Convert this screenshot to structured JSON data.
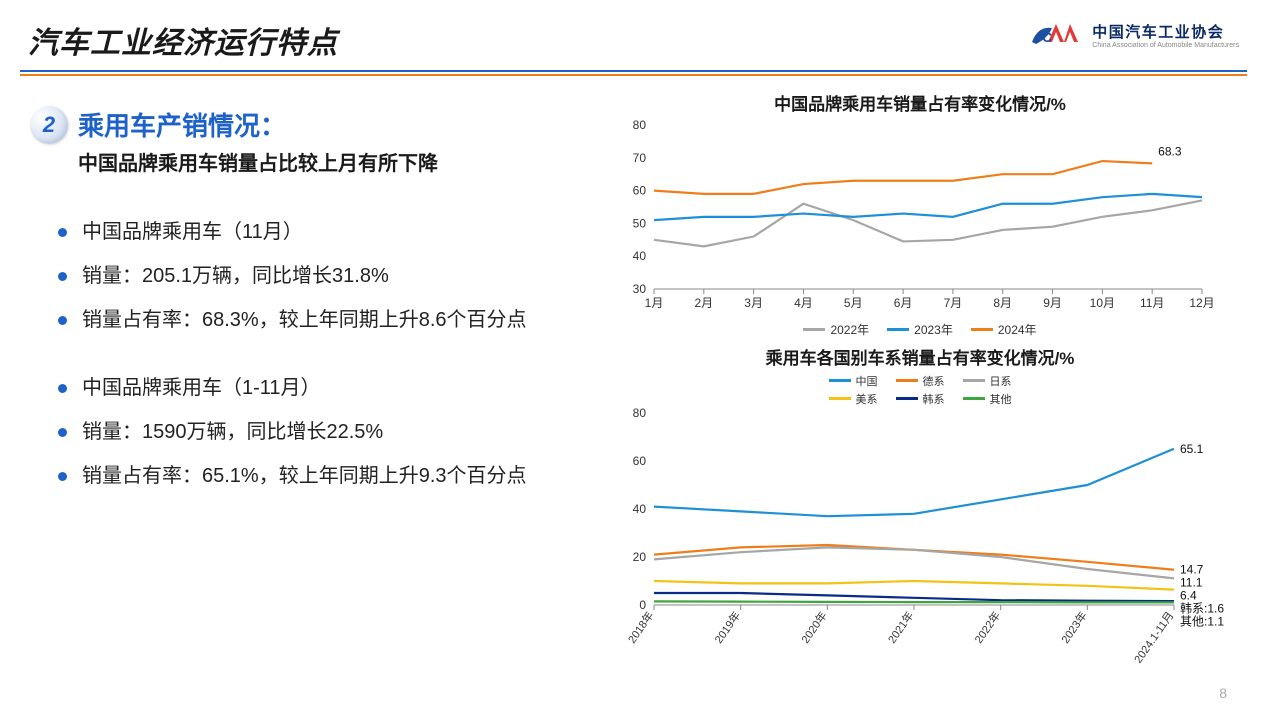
{
  "header": {
    "title": "汽车工业经济运行特点",
    "org_cn": "中国汽车工业协会",
    "org_en": "China Association of Automobile Manufacturers"
  },
  "section": {
    "num": "2",
    "title": "乘用车产销情况：",
    "subtitle": "中国品牌乘用车销量占比较上月有所下降"
  },
  "bullets_a": [
    "中国品牌乘用车（11月）",
    "销量：205.1万辆，同比增长31.8%",
    "销量占有率：68.3%，较上年同期上升8.6个百分点"
  ],
  "bullets_b": [
    "中国品牌乘用车（1-11月）",
    "销量：1590万辆，同比增长22.5%",
    "销量占有率：65.1%，较上年同期上升9.3个百分点"
  ],
  "chart1": {
    "type": "line",
    "title": "中国品牌乘用车销量占有率变化情况/%",
    "xlabels": [
      "1月",
      "2月",
      "3月",
      "4月",
      "5月",
      "6月",
      "7月",
      "8月",
      "9月",
      "10月",
      "11月",
      "12月"
    ],
    "ylim": [
      30,
      80
    ],
    "ytick_step": 10,
    "series": [
      {
        "name": "2022年",
        "color": "#a6a6a6",
        "values": [
          45,
          43,
          46,
          56,
          51,
          44.5,
          45,
          48,
          49,
          52,
          54,
          57
        ]
      },
      {
        "name": "2023年",
        "color": "#1e90d6",
        "values": [
          51,
          52,
          52,
          53,
          52,
          53,
          52,
          56,
          56,
          58,
          59,
          58
        ]
      },
      {
        "name": "2024年",
        "color": "#ef7e1a",
        "values": [
          60,
          59,
          59,
          62,
          63,
          63,
          63,
          65,
          65,
          69,
          68.3,
          null
        ]
      }
    ],
    "callout": {
      "text": "68.3",
      "series": 2,
      "index": 10,
      "color": "#ef7e1a"
    },
    "background": "#ffffff",
    "label_fontsize": 12
  },
  "chart2": {
    "type": "line",
    "title": "乘用车各国别车系销量占有率变化情况/%",
    "xlabels": [
      "2018年",
      "2019年",
      "2020年",
      "2021年",
      "2022年",
      "2023年",
      "2024.1-11月"
    ],
    "ylim": [
      0,
      80
    ],
    "ytick_step": 20,
    "series": [
      {
        "name": "中国",
        "color": "#1e90d6",
        "values": [
          41,
          39,
          37,
          38,
          44,
          50,
          65.1
        ]
      },
      {
        "name": "德系",
        "color": "#ef7e1a",
        "values": [
          21,
          24,
          25,
          23,
          21,
          18,
          14.7
        ]
      },
      {
        "name": "日系",
        "color": "#a6a6a6",
        "values": [
          19,
          22,
          24,
          23,
          20,
          15,
          11.1
        ]
      },
      {
        "name": "美系",
        "color": "#f2c217",
        "values": [
          10,
          9,
          9,
          10,
          9,
          8,
          6.4
        ]
      },
      {
        "name": "韩系",
        "color": "#0a2a88",
        "values": [
          5,
          5,
          4,
          3,
          2,
          1.8,
          1.6
        ]
      },
      {
        "name": "其他",
        "color": "#3fa63f",
        "values": [
          1.5,
          1.4,
          1.3,
          1.2,
          1.2,
          1.1,
          1.1
        ]
      }
    ],
    "end_labels": [
      {
        "text": "65.1",
        "series": 0
      },
      {
        "text": "14.7",
        "series": 1
      },
      {
        "text": "11.1",
        "series": 2
      },
      {
        "text": "6.4",
        "series": 3
      },
      {
        "text": "韩系:1.6",
        "series": 4
      },
      {
        "text": "其他:1.1",
        "series": 5
      }
    ],
    "background": "#ffffff",
    "label_fontsize": 12
  },
  "page_number": "8",
  "colors": {
    "rule_top": "#1e62c9",
    "rule_bottom": "#ef7e1a",
    "bullet": "#1e62c9"
  }
}
